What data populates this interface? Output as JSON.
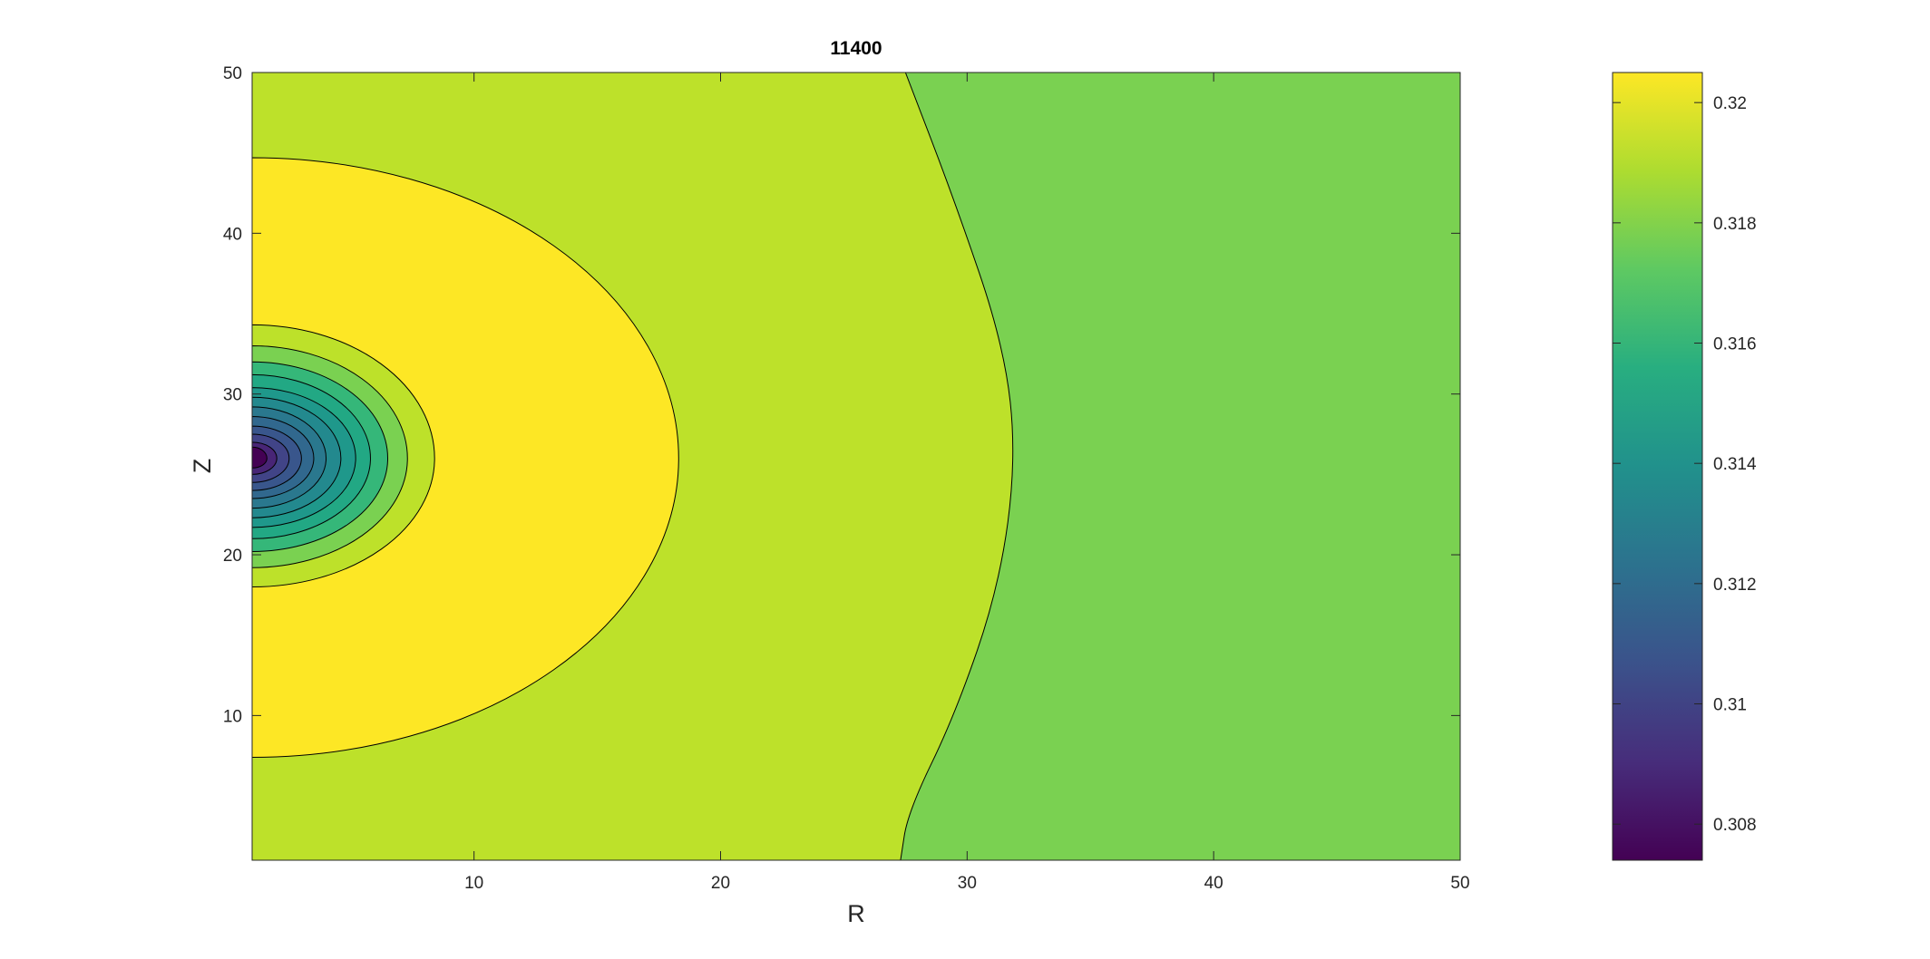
{
  "chart_data": {
    "type": "contour",
    "title": "11400",
    "xlabel": "R",
    "ylabel": "Z",
    "xlim": [
      1,
      50
    ],
    "ylim": [
      1,
      50
    ],
    "xticks": [
      10,
      20,
      30,
      40,
      50
    ],
    "yticks": [
      10,
      20,
      30,
      40,
      50
    ],
    "colorbar": {
      "range": [
        0.3074,
        0.3205
      ],
      "ticks": [
        0.308,
        0.31,
        0.312,
        0.314,
        0.316,
        0.318,
        0.32
      ],
      "tick_labels": [
        "0.308",
        "0.31",
        "0.312",
        "0.314",
        "0.316",
        "0.318",
        "0.32"
      ],
      "colormap": [
        "#440154",
        "#472d7b",
        "#3b528b",
        "#2c728e",
        "#21918c",
        "#28ae80",
        "#5ec962",
        "#addc30",
        "#fde725"
      ]
    },
    "field_description": "minimum near R=1, Z=26; maximum band around it; values decrease toward large R",
    "regions": [
      {
        "level": 0.3185,
        "color": "#bde12a",
        "description": "background band"
      },
      {
        "level": 0.3175,
        "color": "#7ad151",
        "boundary": [
          [
            27.5,
            50
          ],
          [
            29.5,
            42
          ],
          [
            31.5,
            33
          ],
          [
            32.0,
            26
          ],
          [
            31.3,
            18
          ],
          [
            29.5,
            10
          ],
          [
            27.6,
            4
          ],
          [
            27.3,
            1
          ]
        ]
      },
      {
        "level": 0.3205,
        "color": "#fde725",
        "center": [
          1,
          26
        ],
        "radius_r": 17.3,
        "radius_z_up": 18.7,
        "radius_z_down": 18.6
      },
      {
        "level": 0.3185,
        "color": "#bde12a",
        "center": [
          1,
          26
        ],
        "radius_r": 7.4,
        "radius_z_up": 8.3,
        "radius_z_down": 8.0
      },
      {
        "level": 0.3175,
        "color": "#7ad151",
        "center": [
          1,
          26
        ],
        "radius_r": 6.3,
        "radius_z_up": 7.0,
        "radius_z_down": 6.8
      },
      {
        "level": 0.3165,
        "color": "#35b779",
        "center": [
          1,
          26
        ],
        "radius_r": 5.5,
        "radius_z_up": 6.0,
        "radius_z_down": 5.8
      },
      {
        "level": 0.3155,
        "color": "#22a884",
        "center": [
          1,
          26
        ],
        "radius_r": 4.8,
        "radius_z_up": 5.2,
        "radius_z_down": 5.0
      },
      {
        "level": 0.3145,
        "color": "#1f988b",
        "center": [
          1,
          26
        ],
        "radius_r": 4.2,
        "radius_z_up": 4.4,
        "radius_z_down": 4.3
      },
      {
        "level": 0.3135,
        "color": "#23898e",
        "center": [
          1,
          26
        ],
        "radius_r": 3.6,
        "radius_z_up": 3.8,
        "radius_z_down": 3.7
      },
      {
        "level": 0.3125,
        "color": "#2a788e",
        "center": [
          1,
          26
        ],
        "radius_r": 3.0,
        "radius_z_up": 3.2,
        "radius_z_down": 3.1
      },
      {
        "level": 0.3115,
        "color": "#31688e",
        "center": [
          1,
          26
        ],
        "radius_r": 2.5,
        "radius_z_up": 2.6,
        "radius_z_down": 2.5
      },
      {
        "level": 0.3105,
        "color": "#39568c",
        "center": [
          1,
          26
        ],
        "radius_r": 2.0,
        "radius_z_up": 2.0,
        "radius_z_down": 2.0
      },
      {
        "level": 0.3095,
        "color": "#414487",
        "center": [
          1,
          26
        ],
        "radius_r": 1.5,
        "radius_z_up": 1.5,
        "radius_z_down": 1.5
      },
      {
        "level": 0.3085,
        "color": "#482576",
        "center": [
          1,
          26
        ],
        "radius_r": 1.0,
        "radius_z_up": 1.0,
        "radius_z_down": 1.0
      },
      {
        "level": 0.3075,
        "color": "#440154",
        "center": [
          1,
          26
        ],
        "radius_r": 0.6,
        "radius_z_up": 0.7,
        "radius_z_down": 0.6
      }
    ]
  }
}
